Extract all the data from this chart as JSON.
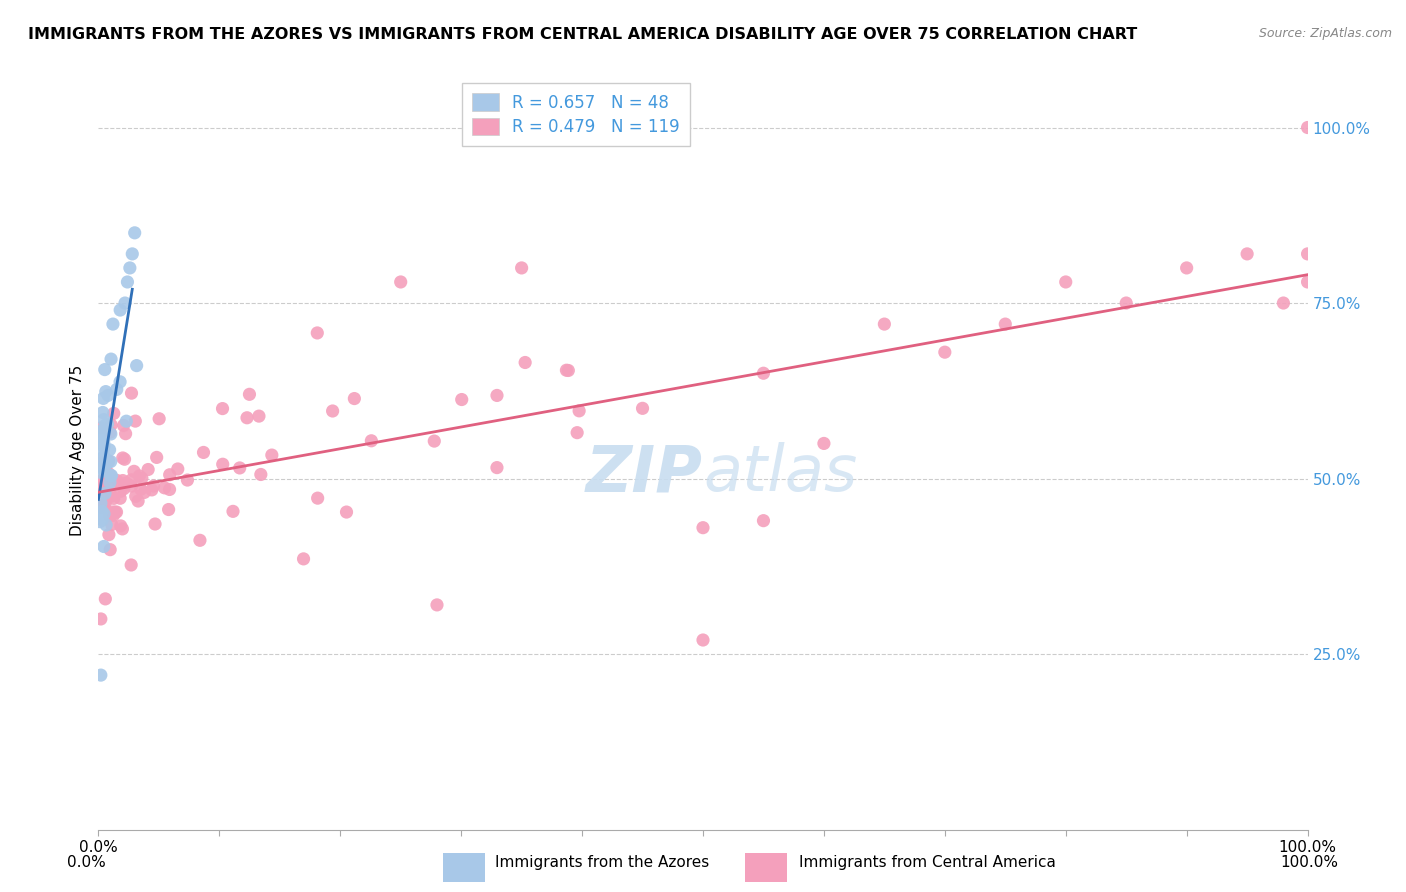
{
  "title": "IMMIGRANTS FROM THE AZORES VS IMMIGRANTS FROM CENTRAL AMERICA DISABILITY AGE OVER 75 CORRELATION CHART",
  "source": "Source: ZipAtlas.com",
  "legend_azores": "Immigrants from the Azores",
  "legend_central": "Immigrants from Central America",
  "ylabel": "Disability Age Over 75",
  "azores_R": 0.657,
  "azores_N": 48,
  "central_R": 0.479,
  "central_N": 119,
  "azores_color": "#a8c8e8",
  "central_color": "#f4a0bc",
  "azores_line_color": "#3070b8",
  "central_line_color": "#e06080",
  "right_tick_color": "#4499dd",
  "background_color": "#ffffff",
  "grid_color": "#cccccc",
  "watermark_color": "#c8ddf0",
  "title_fontsize": 11.5,
  "tick_fontsize": 11,
  "legend_fontsize": 12,
  "xlim": [
    0.0,
    1.0
  ],
  "ylim": [
    0.0,
    1.08
  ],
  "yticks": [
    0.25,
    0.5,
    0.75,
    1.0
  ],
  "ytick_labels": [
    "25.0%",
    "50.0%",
    "75.0%",
    "100.0%"
  ]
}
